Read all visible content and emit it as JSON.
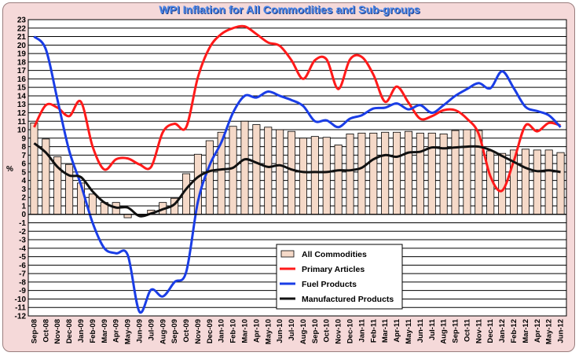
{
  "chart_data": {
    "type": "bar+line",
    "title": "WPI Inflation for All Commodities and Sub-groups",
    "ylabel": "%",
    "xlabel": "",
    "ylim": [
      -12,
      23
    ],
    "yticks": [
      -12,
      -11,
      -10,
      -9,
      -8,
      -7,
      -6,
      -5,
      -4,
      -3,
      -2,
      -1,
      0,
      1,
      2,
      3,
      4,
      5,
      6,
      7,
      8,
      9,
      10,
      11,
      12,
      13,
      14,
      15,
      16,
      17,
      18,
      19,
      20,
      21,
      22,
      23
    ],
    "grid": true,
    "legend_position": "lower-right",
    "categories": [
      "Sep-08",
      "Oct-08",
      "Nov-08",
      "Dec-08",
      "Jan-09",
      "Feb-09",
      "Mar-09",
      "Apr-09",
      "May-09",
      "Jun-09",
      "Jul-09",
      "Aug-09",
      "Sep-09",
      "Oct-09",
      "Nov-09",
      "Dec-09",
      "Jan-10",
      "Feb-10",
      "Mar-10",
      "Apr-10",
      "May-10",
      "Jun-10",
      "Jul-10",
      "Aug-10",
      "Sep-10",
      "Oct-10",
      "Nov-10",
      "Dec-10",
      "Jan-11",
      "Feb-11",
      "Mar-11",
      "Apr-11",
      "May-11",
      "Jun-11",
      "Jul-11",
      "Aug-11",
      "Sep-11",
      "Oct-11",
      "Nov-11",
      "Dec-11",
      "Jan-12",
      "Feb-12",
      "Mar-12",
      "Apr-12",
      "May-12",
      "Jun-12"
    ],
    "series": [
      {
        "name": "All Commodities",
        "kind": "bar",
        "color": "#f5d9c8",
        "values": [
          10.8,
          8.9,
          6.8,
          5.9,
          3.7,
          2.4,
          1.4,
          1.4,
          -0.4,
          -0.1,
          0.5,
          1.4,
          1.9,
          4.8,
          7.1,
          8.7,
          9.7,
          10.4,
          11.0,
          10.6,
          10.3,
          10.0,
          9.8,
          9.0,
          9.2,
          9.1,
          8.2,
          9.5,
          9.6,
          9.6,
          9.7,
          9.7,
          9.8,
          9.6,
          9.6,
          9.5,
          9.9,
          10.0,
          9.9,
          7.5,
          7.2,
          7.6,
          7.7,
          7.6,
          7.6,
          7.3
        ]
      },
      {
        "name": "Primary Articles",
        "kind": "line",
        "color": "#ff1a1a",
        "values": [
          10.3,
          12.9,
          12.6,
          11.6,
          13.3,
          8.0,
          5.3,
          6.5,
          6.6,
          5.9,
          5.6,
          9.7,
          10.7,
          10.3,
          16.2,
          19.7,
          21.3,
          22.0,
          22.2,
          21.3,
          20.3,
          19.9,
          18.2,
          16.0,
          18.2,
          18.3,
          14.8,
          18.3,
          18.6,
          16.5,
          13.3,
          15.1,
          13.2,
          11.3,
          11.6,
          12.3,
          12.3,
          11.3,
          9.5,
          4.5,
          2.8,
          6.3,
          10.5,
          9.8,
          10.8,
          10.5
        ]
      },
      {
        "name": "Fuel Products",
        "kind": "line",
        "color": "#1a3de6",
        "values": [
          21.0,
          19.5,
          13.5,
          7.5,
          3.5,
          -1.0,
          -4.0,
          -4.6,
          -4.8,
          -11.5,
          -8.9,
          -9.7,
          -8.0,
          -6.8,
          1.5,
          5.8,
          8.5,
          12.0,
          14.0,
          13.8,
          14.5,
          14.0,
          13.5,
          12.8,
          11.0,
          11.1,
          10.3,
          11.3,
          11.7,
          12.5,
          12.6,
          13.1,
          12.4,
          12.9,
          12.0,
          12.9,
          14.0,
          14.8,
          15.5,
          14.9,
          16.9,
          14.9,
          12.7,
          12.2,
          11.7,
          10.3
        ]
      },
      {
        "name": "Manufactured Products",
        "kind": "line",
        "color": "#111111",
        "values": [
          8.4,
          7.3,
          5.6,
          4.6,
          4.4,
          2.7,
          1.4,
          0.8,
          0.8,
          -0.2,
          0.1,
          0.6,
          1.2,
          3.0,
          4.4,
          5.1,
          5.3,
          5.5,
          6.5,
          6.1,
          5.6,
          5.8,
          5.3,
          5.0,
          5.0,
          5.0,
          5.2,
          5.2,
          5.5,
          6.5,
          7.0,
          6.8,
          7.3,
          7.4,
          7.9,
          7.8,
          7.9,
          8.0,
          8.0,
          7.6,
          6.9,
          6.2,
          5.5,
          5.1,
          5.2,
          5.0
        ]
      }
    ]
  }
}
